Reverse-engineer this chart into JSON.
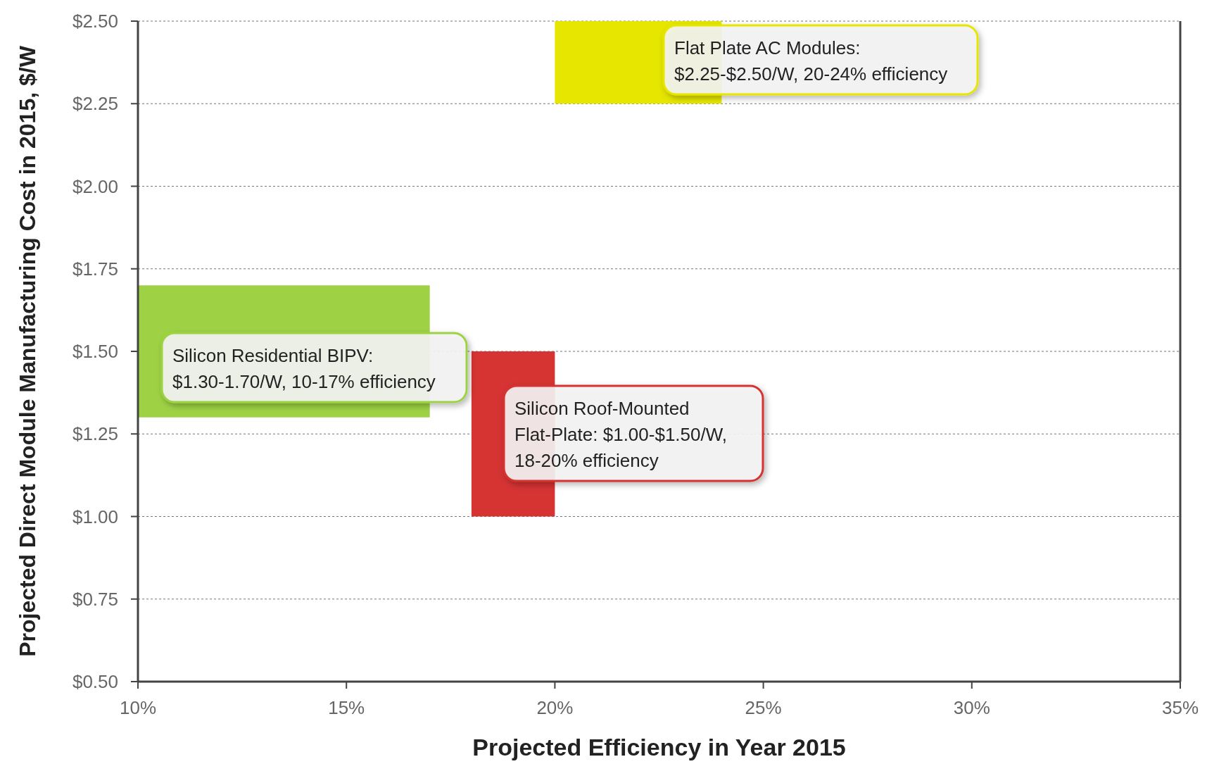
{
  "chart_data": {
    "type": "line",
    "xlabel": "Projected Efficiency in Year 2015",
    "ylabel": "Projected Direct Module Manufacturing Cost in 2015, $/W",
    "xlim": [
      10,
      35
    ],
    "ylim": [
      0.5,
      2.5
    ],
    "xticks": [
      {
        "value": 10,
        "label": "10%"
      },
      {
        "value": 15,
        "label": "15%"
      },
      {
        "value": 20,
        "label": "20%"
      },
      {
        "value": 25,
        "label": "25%"
      },
      {
        "value": 30,
        "label": "30%"
      },
      {
        "value": 35,
        "label": "35%"
      }
    ],
    "yticks": [
      {
        "value": 0.5,
        "label": "$0.50"
      },
      {
        "value": 0.75,
        "label": "$0.75"
      },
      {
        "value": 1,
        "label": "$1.00"
      },
      {
        "value": 1.25,
        "label": "$1.25"
      },
      {
        "value": 1.5,
        "label": "$1.50"
      },
      {
        "value": 1.75,
        "label": "$1.75"
      },
      {
        "value": 2,
        "label": "$2.00"
      },
      {
        "value": 2.25,
        "label": "$2.25"
      },
      {
        "value": 2.5,
        "label": "$2.50"
      }
    ],
    "grid": "y",
    "series": [
      {
        "color": "#e6e600",
        "x": [
          20,
          24
        ],
        "values": [
          null,
          null
        ],
        "lower": [
          2.25,
          2.25
        ],
        "upper": [
          2.5,
          2.5
        ]
      },
      {
        "color": "#9ed244",
        "x": [
          10,
          17
        ],
        "values": [
          null,
          null
        ],
        "lower": [
          1.3,
          1.3
        ],
        "upper": [
          1.7,
          1.7
        ]
      },
      {
        "color": "#d63333",
        "x": [
          18,
          20
        ],
        "values": [
          null,
          null
        ],
        "lower": [
          1.0,
          1.0
        ],
        "upper": [
          1.5,
          1.5
        ]
      }
    ],
    "annotations": [
      "Flat Plate AC Modules:\n$2.25-$2.50/W, 20-24% efficiency",
      "Silicon Residential BIPV:\n$1.30-1.70/W, 10-17% efficiency",
      "Silicon Roof-Mounted\nFlat-Plate: $1.00-$1.50/W,\n18-20% efficiency"
    ]
  }
}
